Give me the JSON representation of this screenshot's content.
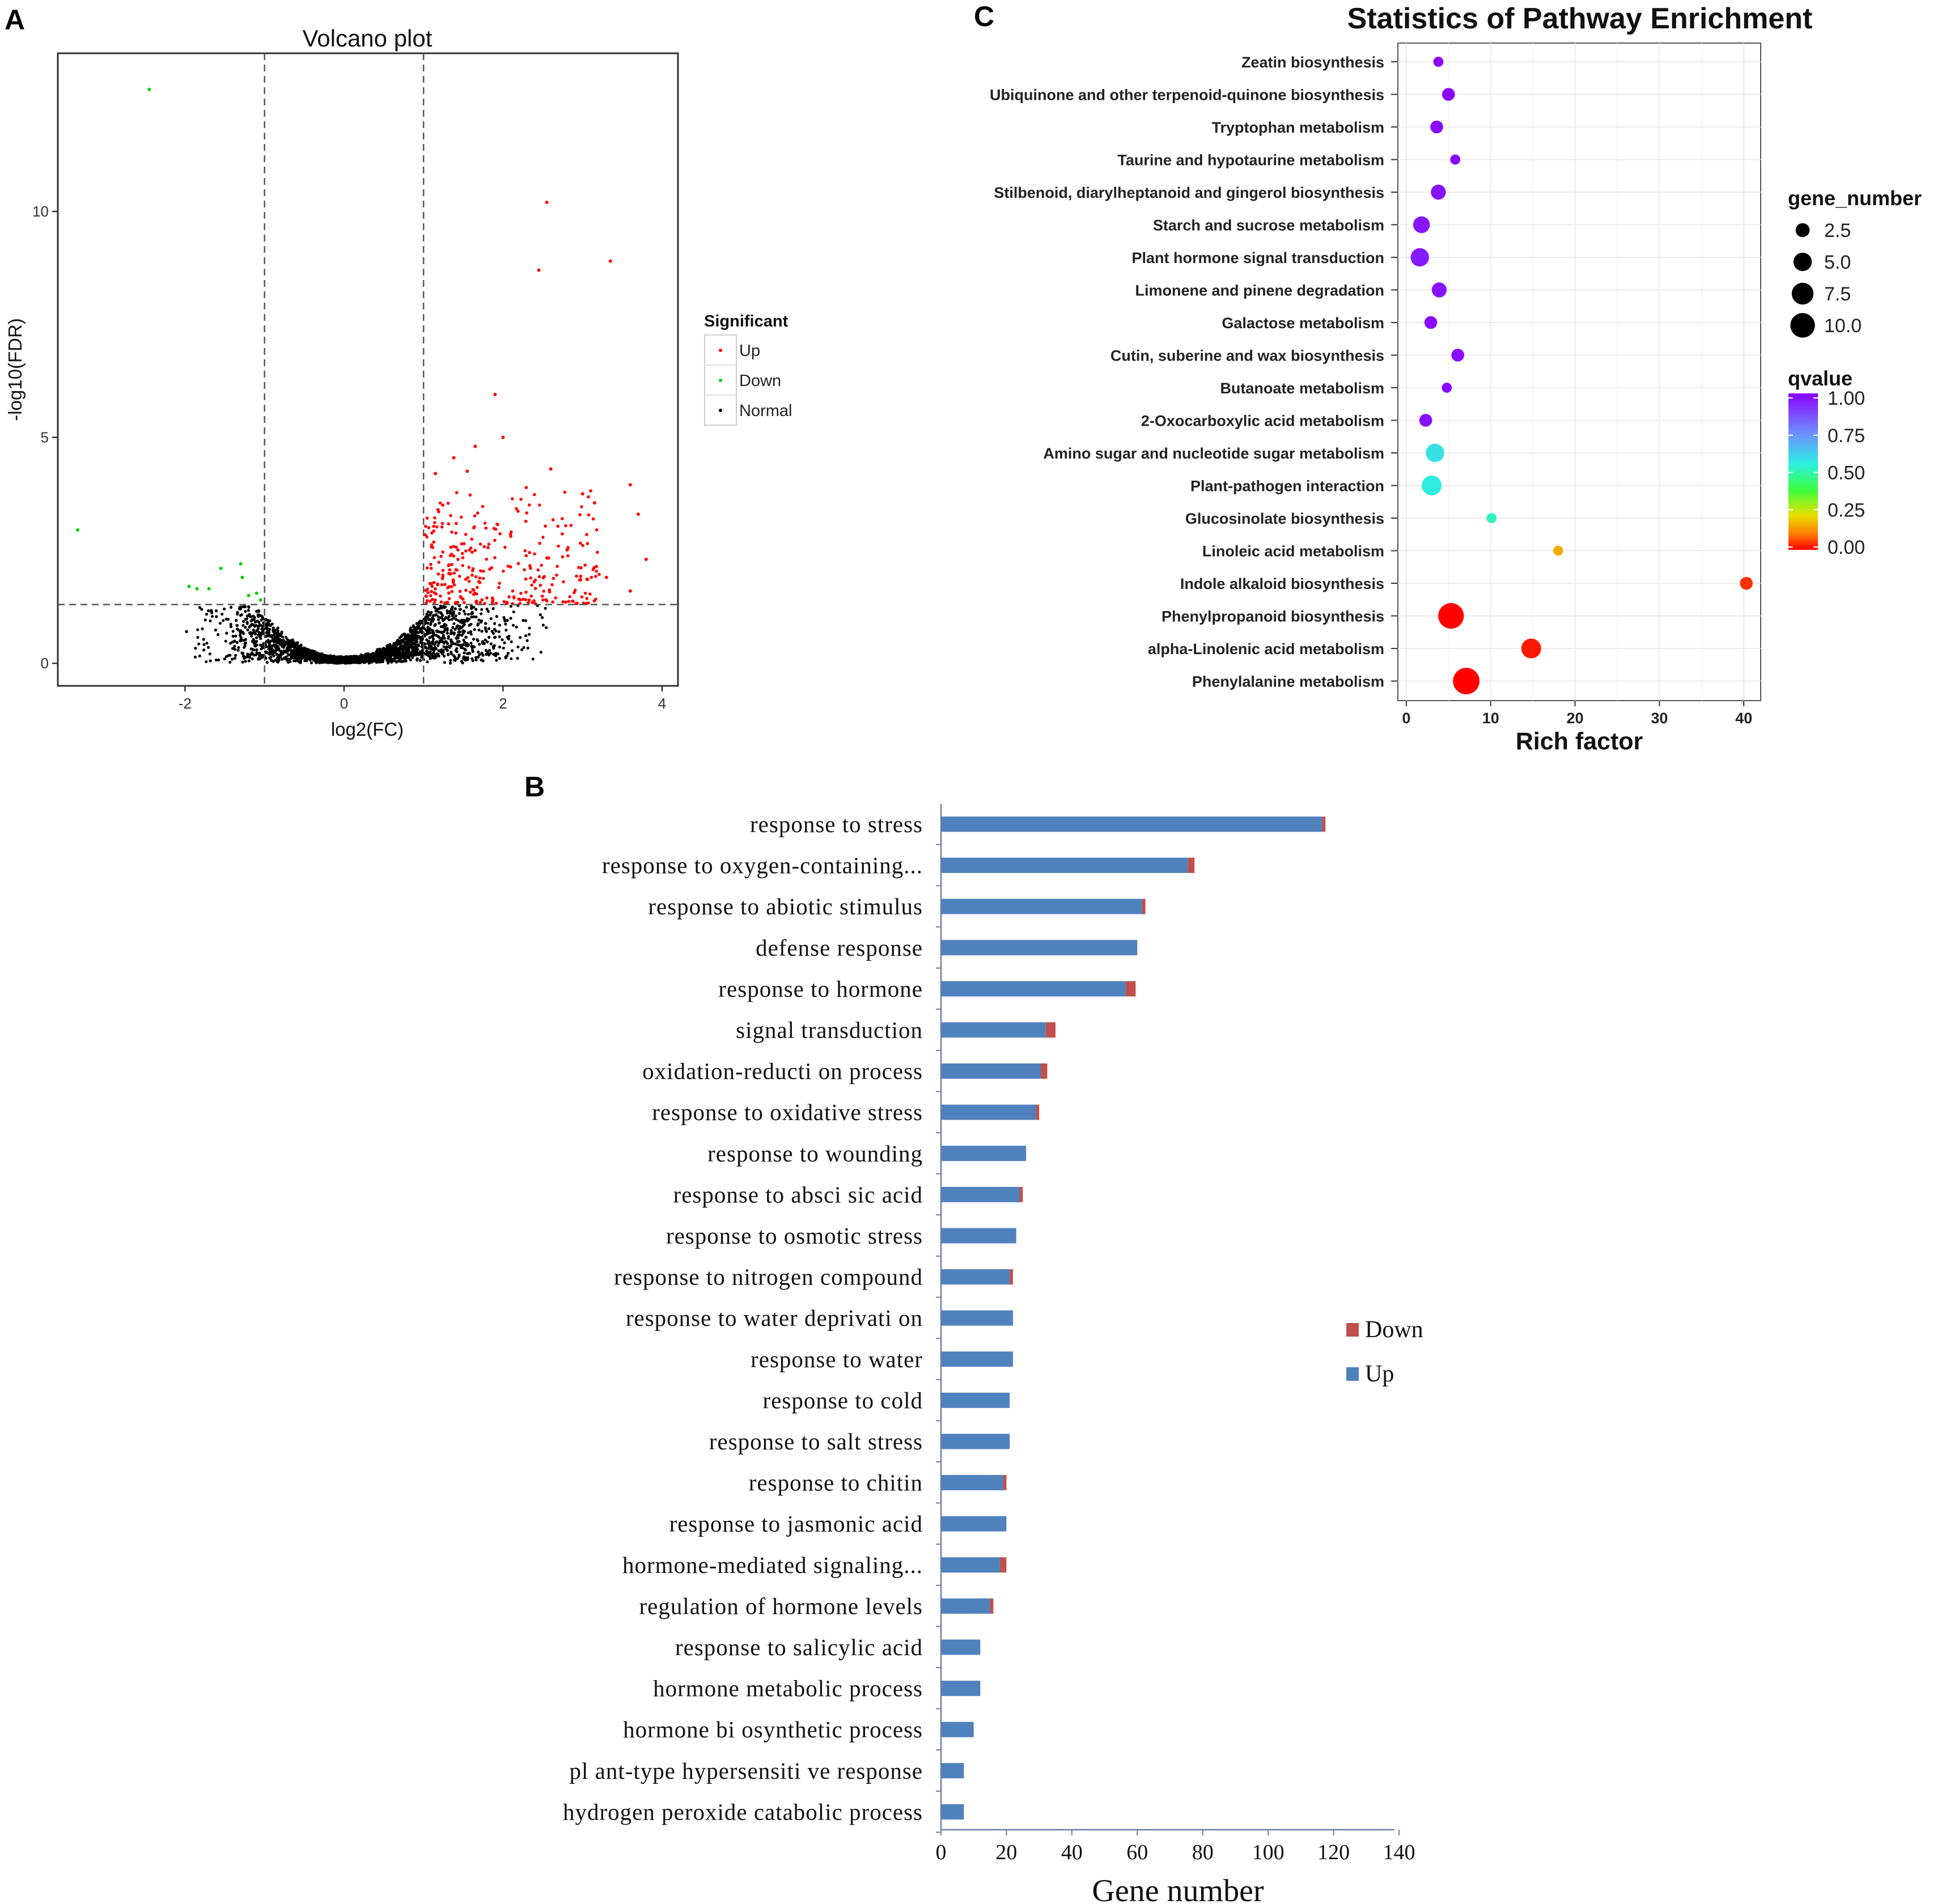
{
  "panels": {
    "a_letter": "A",
    "b_letter": "B",
    "c_letter": "C"
  },
  "chart_data": [
    {
      "panel": "A",
      "type": "scatter",
      "title": "Volcano plot",
      "xlabel": "log2(FC)",
      "ylabel": "-log10(FDR)",
      "xlim": [
        -3.6,
        4.2
      ],
      "ylim": [
        -0.5,
        13.5
      ],
      "xticks": [
        -2,
        0,
        2,
        4
      ],
      "yticks": [
        0,
        5,
        10
      ],
      "thresholds": {
        "log2fc": [
          -1,
          1
        ],
        "neg_log10_fdr": 1.3
      },
      "legend": {
        "title": "Significant",
        "position": "right",
        "entries": [
          {
            "label": "Up",
            "color": "#ff0000"
          },
          {
            "label": "Down",
            "color": "#00cc00"
          },
          {
            "label": "Normal",
            "color": "#000000"
          }
        ]
      },
      "series": [
        {
          "name": "Up",
          "color": "#ff0000",
          "points": [
            [
              2.55,
              10.2
            ],
            [
              3.35,
              8.9
            ],
            [
              2.45,
              8.7
            ],
            [
              1.9,
              5.95
            ],
            [
              2.0,
              5.0
            ],
            [
              1.65,
              4.8
            ],
            [
              2.6,
              4.3
            ],
            [
              1.38,
              4.55
            ],
            [
              1.55,
              4.25
            ],
            [
              3.6,
              3.95
            ],
            [
              3.0,
              3.75
            ],
            [
              3.15,
              3.55
            ],
            [
              3.7,
              3.3
            ],
            [
              3.8,
              2.3
            ],
            [
              3.6,
              1.6
            ],
            [
              3.3,
              1.9
            ],
            [
              1.15,
              4.2
            ]
          ],
          "note": "plus a dense cloud of ~300 up-regulated genes between log2FC 1 and 3.2, -log10(FDR) 1.3-4"
        },
        {
          "name": "Down",
          "color": "#00cc00",
          "points": [
            [
              -2.45,
              12.7
            ],
            [
              -3.35,
              2.95
            ],
            [
              -1.3,
              2.2
            ],
            [
              -1.55,
              2.1
            ],
            [
              -1.95,
              1.7
            ],
            [
              -1.85,
              1.65
            ],
            [
              -1.7,
              1.65
            ],
            [
              -1.28,
              1.9
            ],
            [
              -1.1,
              1.55
            ],
            [
              -1.05,
              1.4
            ],
            [
              -1.2,
              1.5
            ]
          ]
        },
        {
          "name": "Normal",
          "color": "#000000",
          "note": "~3000 non-significant genes forming a V-shaped cloud centred on log2FC 0, -log10(FDR) below 1.3"
        }
      ]
    },
    {
      "panel": "B",
      "type": "bar",
      "orientation": "horizontal",
      "stacked": true,
      "xlabel": "Gene number",
      "xlim": [
        0,
        140
      ],
      "xticks": [
        0,
        20,
        40,
        60,
        80,
        100,
        120,
        140
      ],
      "legend": {
        "position": "right",
        "entries": [
          {
            "label": "Down",
            "color": "#c0504d"
          },
          {
            "label": "Up",
            "color": "#4f81bd"
          }
        ]
      },
      "categories": [
        "response to stress",
        "response to oxygen-containing...",
        "response to abiotic stimulus",
        "defense response",
        "response to hormone",
        "signal transduction",
        "oxidation-reducti on process",
        "response to oxidative stress",
        "response to wounding",
        "response to absci sic acid",
        "response to osmotic stress",
        "response to nitrogen compound",
        "response to water deprivati on",
        "response to water",
        "response to cold",
        "response to salt stress",
        "response to chitin",
        "response to jasmonic acid",
        "hormone-mediated signaling...",
        "regulation of hormone levels",
        "response to salicylic acid",
        "hormone metabolic process",
        "hormone bi osynthetic process",
        "pl ant-type hypersensiti ve response",
        "hydrogen peroxide catabolic process"
      ],
      "series": [
        {
          "name": "Up",
          "color": "#4f81bd",
          "values": [
            116.5,
            75.5,
            61.5,
            60,
            56.5,
            32,
            30.5,
            29,
            26,
            24,
            23,
            21,
            22,
            22,
            21,
            21,
            19,
            20,
            18,
            15,
            12,
            12,
            10,
            7,
            7
          ]
        },
        {
          "name": "Down",
          "color": "#c0504d",
          "values": [
            1,
            2,
            1,
            0,
            3,
            3,
            2,
            1,
            0,
            1,
            0,
            1,
            0,
            0,
            0,
            0,
            1,
            0,
            2,
            1,
            0,
            0,
            0,
            0,
            0
          ]
        }
      ]
    },
    {
      "panel": "C",
      "type": "scatter",
      "subtype": "bubble",
      "title": "Statistics of Pathway Enrichment",
      "xlabel": "Rich factor",
      "xlim": [
        -1,
        42
      ],
      "xticks": [
        0,
        10,
        20,
        30,
        40
      ],
      "grid": true,
      "categories": [
        "Zeatin biosynthesis",
        "Ubiquinone and other terpenoid-quinone biosynthesis",
        "Tryptophan metabolism",
        "Taurine and hypotaurine metabolism",
        "Stilbenoid, diarylheptanoid and gingerol biosynthesis",
        "Starch and sucrose metabolism",
        "Plant hormone signal transduction",
        "Limonene and pinene degradation",
        "Galactose metabolism",
        "Cutin, suberine and wax biosynthesis",
        "Butanoate metabolism",
        "2-Oxocarboxylic acid metabolism",
        "Amino sugar and nucleotide sugar metabolism",
        "Plant-pathogen interaction",
        "Glucosinolate biosynthesis",
        "Linoleic acid metabolism",
        "Indole alkaloid biosynthesis",
        "Phenylpropanoid biosynthesis",
        "alpha-Linolenic acid metabolism",
        "Phenylalanine metabolism"
      ],
      "rich_factor": [
        3.8,
        5.0,
        3.6,
        5.8,
        3.8,
        1.8,
        1.6,
        3.9,
        2.9,
        6.1,
        4.8,
        2.3,
        3.4,
        3.0,
        10.1,
        18.0,
        40.3,
        5.3,
        14.8,
        7.1
      ],
      "gene_number": [
        1,
        2,
        2,
        1,
        3,
        4,
        5,
        3,
        2,
        2,
        1,
        2,
        5,
        6,
        1,
        1,
        2,
        11,
        6,
        12
      ],
      "qvalue": [
        1.0,
        1.0,
        0.98,
        1.0,
        0.97,
        0.96,
        0.95,
        0.97,
        0.98,
        0.98,
        0.99,
        0.97,
        0.58,
        0.56,
        0.52,
        0.16,
        0.04,
        0.0,
        0.02,
        0.0
      ],
      "legend_size": {
        "title": "gene_number",
        "labels": [
          "2.5",
          "5.0",
          "7.5",
          "10.0"
        ],
        "values": [
          2.5,
          5.0,
          7.5,
          10.0
        ]
      },
      "legend_color": {
        "title": "qvalue",
        "labels": [
          "1.00",
          "0.75",
          "0.50",
          "0.25",
          "0.00"
        ],
        "values": [
          1.0,
          0.75,
          0.5,
          0.25,
          0.0
        ],
        "colormap": [
          "#8a00ff",
          "#6f8cff",
          "#2cf0e0",
          "#3cff3c",
          "#e8e000",
          "#ff7a00",
          "#ff0000"
        ]
      }
    }
  ]
}
